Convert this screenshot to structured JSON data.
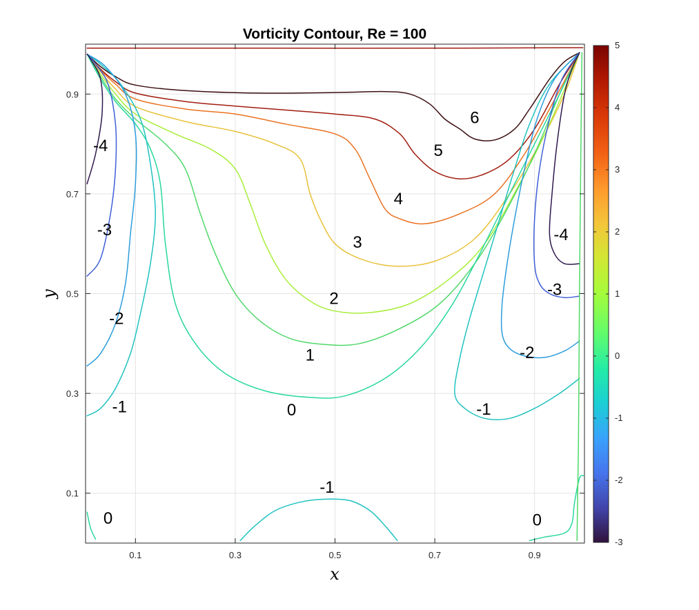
{
  "chart_data": {
    "type": "contour",
    "title": "Vorticity Contour, Re = 100",
    "xlabel": "x",
    "ylabel": "y",
    "xlim": [
      0,
      1
    ],
    "ylim": [
      0,
      1
    ],
    "grid": true,
    "xticks": [
      "0.1",
      "0.3",
      "0.5",
      "0.7",
      "0.9"
    ],
    "yticks": [
      "0.1",
      "0.3",
      "0.5",
      "0.7",
      "0.9"
    ],
    "xtick_values": [
      0.1,
      0.3,
      0.5,
      0.7,
      0.9
    ],
    "ytick_values": [
      0.1,
      0.3,
      0.5,
      0.7,
      0.9
    ],
    "colorbar": {
      "min": -3,
      "max": 5,
      "ticks": [
        "5",
        "4",
        "3",
        "2",
        "1",
        "0",
        "-1",
        "-2",
        "-3"
      ],
      "tick_values": [
        5,
        4,
        3,
        2,
        1,
        0,
        -1,
        -2,
        -3
      ]
    },
    "levels": [
      {
        "level": 6,
        "color": "#3a0e10",
        "points": [
          [
            0.003,
            0.98
          ],
          [
            0.03,
            0.955
          ],
          [
            0.06,
            0.935
          ],
          [
            0.1,
            0.918
          ],
          [
            0.2,
            0.907
          ],
          [
            0.35,
            0.902
          ],
          [
            0.5,
            0.903
          ],
          [
            0.6,
            0.905
          ],
          [
            0.65,
            0.9
          ],
          [
            0.69,
            0.88
          ],
          [
            0.72,
            0.85
          ],
          [
            0.75,
            0.83
          ],
          [
            0.78,
            0.81
          ],
          [
            0.82,
            0.808
          ],
          [
            0.86,
            0.83
          ],
          [
            0.89,
            0.87
          ],
          [
            0.93,
            0.93
          ],
          [
            0.96,
            0.965
          ],
          [
            0.99,
            0.983
          ]
        ]
      },
      {
        "level": 5,
        "color": "#a01c10",
        "points": [
          [
            0.003,
            0.98
          ],
          [
            0.03,
            0.95
          ],
          [
            0.06,
            0.925
          ],
          [
            0.1,
            0.902
          ],
          [
            0.2,
            0.885
          ],
          [
            0.3,
            0.876
          ],
          [
            0.4,
            0.868
          ],
          [
            0.5,
            0.86
          ],
          [
            0.58,
            0.85
          ],
          [
            0.63,
            0.82
          ],
          [
            0.66,
            0.78
          ],
          [
            0.7,
            0.745
          ],
          [
            0.75,
            0.73
          ],
          [
            0.8,
            0.74
          ],
          [
            0.85,
            0.77
          ],
          [
            0.9,
            0.83
          ],
          [
            0.95,
            0.92
          ],
          [
            0.99,
            0.983
          ]
        ]
      },
      {
        "level": 4,
        "color": "#ea7221",
        "points": [
          [
            0.003,
            0.98
          ],
          [
            0.03,
            0.948
          ],
          [
            0.06,
            0.92
          ],
          [
            0.1,
            0.89
          ],
          [
            0.2,
            0.87
          ],
          [
            0.3,
            0.86
          ],
          [
            0.4,
            0.84
          ],
          [
            0.5,
            0.82
          ],
          [
            0.54,
            0.79
          ],
          [
            0.57,
            0.73
          ],
          [
            0.6,
            0.67
          ],
          [
            0.63,
            0.65
          ],
          [
            0.68,
            0.64
          ],
          [
            0.75,
            0.66
          ],
          [
            0.82,
            0.7
          ],
          [
            0.88,
            0.78
          ],
          [
            0.93,
            0.87
          ],
          [
            0.99,
            0.983
          ]
        ]
      },
      {
        "level": 3,
        "color": "#e8c13a",
        "points": [
          [
            0.003,
            0.98
          ],
          [
            0.03,
            0.945
          ],
          [
            0.06,
            0.91
          ],
          [
            0.1,
            0.875
          ],
          [
            0.2,
            0.845
          ],
          [
            0.3,
            0.825
          ],
          [
            0.38,
            0.8
          ],
          [
            0.43,
            0.77
          ],
          [
            0.45,
            0.7
          ],
          [
            0.47,
            0.65
          ],
          [
            0.5,
            0.6
          ],
          [
            0.55,
            0.57
          ],
          [
            0.62,
            0.555
          ],
          [
            0.7,
            0.565
          ],
          [
            0.78,
            0.61
          ],
          [
            0.85,
            0.7
          ],
          [
            0.91,
            0.8
          ],
          [
            0.96,
            0.9
          ],
          [
            0.99,
            0.983
          ]
        ]
      },
      {
        "level": 2,
        "color": "#a8ee3a",
        "points": [
          [
            0.003,
            0.98
          ],
          [
            0.03,
            0.94
          ],
          [
            0.06,
            0.9
          ],
          [
            0.1,
            0.86
          ],
          [
            0.18,
            0.82
          ],
          [
            0.25,
            0.79
          ],
          [
            0.3,
            0.75
          ],
          [
            0.33,
            0.68
          ],
          [
            0.36,
            0.6
          ],
          [
            0.4,
            0.53
          ],
          [
            0.45,
            0.485
          ],
          [
            0.5,
            0.465
          ],
          [
            0.57,
            0.462
          ],
          [
            0.65,
            0.48
          ],
          [
            0.73,
            0.53
          ],
          [
            0.8,
            0.6
          ],
          [
            0.87,
            0.72
          ],
          [
            0.93,
            0.84
          ],
          [
            0.99,
            0.983
          ]
        ]
      },
      {
        "level": 1,
        "color": "#4fd86a",
        "points": [
          [
            0.003,
            0.98
          ],
          [
            0.03,
            0.935
          ],
          [
            0.06,
            0.89
          ],
          [
            0.1,
            0.85
          ],
          [
            0.16,
            0.8
          ],
          [
            0.2,
            0.75
          ],
          [
            0.23,
            0.66
          ],
          [
            0.26,
            0.58
          ],
          [
            0.3,
            0.5
          ],
          [
            0.35,
            0.445
          ],
          [
            0.41,
            0.41
          ],
          [
            0.48,
            0.398
          ],
          [
            0.55,
            0.4
          ],
          [
            0.63,
            0.43
          ],
          [
            0.71,
            0.48
          ],
          [
            0.78,
            0.56
          ],
          [
            0.84,
            0.66
          ],
          [
            0.9,
            0.78
          ],
          [
            0.95,
            0.9
          ],
          [
            0.99,
            0.983
          ]
        ]
      },
      {
        "level": 0,
        "color": "#28d7a0",
        "points": [
          [
            0.003,
            0.98
          ],
          [
            0.03,
            0.93
          ],
          [
            0.06,
            0.885
          ],
          [
            0.1,
            0.84
          ],
          [
            0.13,
            0.79
          ],
          [
            0.15,
            0.72
          ],
          [
            0.16,
            0.6
          ],
          [
            0.18,
            0.48
          ],
          [
            0.22,
            0.4
          ],
          [
            0.28,
            0.34
          ],
          [
            0.36,
            0.305
          ],
          [
            0.45,
            0.292
          ],
          [
            0.52,
            0.295
          ],
          [
            0.6,
            0.33
          ],
          [
            0.67,
            0.39
          ],
          [
            0.73,
            0.47
          ],
          [
            0.78,
            0.56
          ],
          [
            0.84,
            0.68
          ],
          [
            0.9,
            0.8
          ],
          [
            0.95,
            0.9
          ],
          [
            0.99,
            0.983
          ]
        ]
      },
      {
        "level": -1,
        "color": "#20c2c0",
        "points": [
          [
            0.003,
            0.255
          ],
          [
            0.03,
            0.27
          ],
          [
            0.06,
            0.31
          ],
          [
            0.09,
            0.38
          ],
          [
            0.11,
            0.46
          ],
          [
            0.13,
            0.56
          ],
          [
            0.14,
            0.66
          ],
          [
            0.13,
            0.76
          ],
          [
            0.11,
            0.85
          ],
          [
            0.07,
            0.92
          ],
          [
            0.03,
            0.96
          ],
          [
            0.003,
            0.98
          ]
        ]
      },
      {
        "level": -2,
        "color": "#2a9cdc",
        "points": [
          [
            0.003,
            0.355
          ],
          [
            0.03,
            0.38
          ],
          [
            0.06,
            0.44
          ],
          [
            0.08,
            0.52
          ],
          [
            0.09,
            0.62
          ],
          [
            0.1,
            0.72
          ],
          [
            0.1,
            0.82
          ],
          [
            0.08,
            0.9
          ],
          [
            0.04,
            0.955
          ],
          [
            0.003,
            0.98
          ]
        ]
      },
      {
        "level": -3,
        "color": "#3f5fd6",
        "points": [
          [
            0.003,
            0.535
          ],
          [
            0.03,
            0.57
          ],
          [
            0.05,
            0.66
          ],
          [
            0.06,
            0.75
          ],
          [
            0.06,
            0.84
          ],
          [
            0.045,
            0.92
          ],
          [
            0.02,
            0.96
          ],
          [
            0.003,
            0.98
          ]
        ]
      },
      {
        "level": -4,
        "color": "#30174e",
        "points": [
          [
            0.003,
            0.72
          ],
          [
            0.02,
            0.78
          ],
          [
            0.033,
            0.86
          ],
          [
            0.03,
            0.93
          ],
          [
            0.01,
            0.97
          ],
          [
            0.003,
            0.98
          ]
        ]
      },
      {
        "level": -1,
        "color": "#20c2c0",
        "points": [
          [
            0.99,
            0.33
          ],
          [
            0.95,
            0.3
          ],
          [
            0.9,
            0.27
          ],
          [
            0.85,
            0.25
          ],
          [
            0.8,
            0.25
          ],
          [
            0.76,
            0.27
          ],
          [
            0.74,
            0.3
          ],
          [
            0.75,
            0.37
          ],
          [
            0.77,
            0.45
          ],
          [
            0.8,
            0.55
          ],
          [
            0.83,
            0.65
          ],
          [
            0.86,
            0.75
          ],
          [
            0.89,
            0.84
          ],
          [
            0.93,
            0.92
          ],
          [
            0.99,
            0.983
          ]
        ]
      },
      {
        "level": -2,
        "color": "#2a9cdc",
        "points": [
          [
            0.99,
            0.405
          ],
          [
            0.96,
            0.385
          ],
          [
            0.92,
            0.372
          ],
          [
            0.88,
            0.375
          ],
          [
            0.85,
            0.39
          ],
          [
            0.835,
            0.42
          ],
          [
            0.835,
            0.48
          ],
          [
            0.845,
            0.56
          ],
          [
            0.86,
            0.65
          ],
          [
            0.88,
            0.75
          ],
          [
            0.905,
            0.85
          ],
          [
            0.94,
            0.93
          ],
          [
            0.99,
            0.983
          ]
        ]
      },
      {
        "level": -3,
        "color": "#3f5fd6",
        "points": [
          [
            0.99,
            0.495
          ],
          [
            0.96,
            0.492
          ],
          [
            0.93,
            0.5
          ],
          [
            0.91,
            0.52
          ],
          [
            0.9,
            0.56
          ],
          [
            0.9,
            0.65
          ],
          [
            0.91,
            0.75
          ],
          [
            0.93,
            0.85
          ],
          [
            0.955,
            0.93
          ],
          [
            0.99,
            0.983
          ]
        ]
      },
      {
        "level": -4,
        "color": "#30174e",
        "points": [
          [
            0.99,
            0.56
          ],
          [
            0.96,
            0.56
          ],
          [
            0.94,
            0.58
          ],
          [
            0.93,
            0.62
          ],
          [
            0.935,
            0.7
          ],
          [
            0.945,
            0.8
          ],
          [
            0.96,
            0.9
          ],
          [
            0.975,
            0.95
          ],
          [
            0.99,
            0.983
          ]
        ]
      },
      {
        "level": 0,
        "color": "#28d7a0",
        "points": [
          [
            0.89,
            0.005
          ],
          [
            0.92,
            0.012
          ],
          [
            0.96,
            0.02
          ],
          [
            0.975,
            0.04
          ],
          [
            0.98,
            0.08
          ],
          [
            0.99,
            0.13
          ],
          [
            0.998,
            0.135
          ]
        ]
      },
      {
        "level": 0,
        "color": "#28d7a0",
        "points": [
          [
            0.003,
            0.062
          ],
          [
            0.01,
            0.03
          ],
          [
            0.02,
            0.008
          ]
        ]
      },
      {
        "level": -1,
        "color": "#20c2c0",
        "points": [
          [
            0.31,
            0.005
          ],
          [
            0.34,
            0.035
          ],
          [
            0.38,
            0.065
          ],
          [
            0.43,
            0.082
          ],
          [
            0.48,
            0.088
          ],
          [
            0.53,
            0.085
          ],
          [
            0.57,
            0.065
          ],
          [
            0.6,
            0.035
          ],
          [
            0.625,
            0.005
          ]
        ]
      },
      {
        "level": 1,
        "color": "#4fd86a",
        "points": [
          [
            0.985,
            0.005
          ],
          [
            0.988,
            0.2
          ],
          [
            0.99,
            0.5
          ],
          [
            0.993,
            0.8
          ],
          [
            0.995,
            0.983
          ]
        ]
      },
      {
        "level": 5,
        "color": "#a01c10",
        "points": [
          [
            0.003,
            0.992
          ],
          [
            0.3,
            0.992
          ],
          [
            0.7,
            0.992
          ],
          [
            0.997,
            0.993
          ]
        ]
      }
    ],
    "labels": [
      {
        "text": "6",
        "x": 0.78,
        "y": 0.853
      },
      {
        "text": "5",
        "x": 0.707,
        "y": 0.787
      },
      {
        "text": "4",
        "x": 0.627,
        "y": 0.69
      },
      {
        "text": "3",
        "x": 0.545,
        "y": 0.603
      },
      {
        "text": "2",
        "x": 0.498,
        "y": 0.49
      },
      {
        "text": "1",
        "x": 0.45,
        "y": 0.377
      },
      {
        "text": "0",
        "x": 0.413,
        "y": 0.267
      },
      {
        "text": "-1",
        "x": 0.068,
        "y": 0.273
      },
      {
        "text": "-2",
        "x": 0.062,
        "y": 0.45
      },
      {
        "text": "-3",
        "x": 0.038,
        "y": 0.628
      },
      {
        "text": "-4",
        "x": 0.03,
        "y": 0.797
      },
      {
        "text": "-1",
        "x": 0.798,
        "y": 0.268
      },
      {
        "text": "-2",
        "x": 0.885,
        "y": 0.382
      },
      {
        "text": "-3",
        "x": 0.94,
        "y": 0.508
      },
      {
        "text": "-4",
        "x": 0.953,
        "y": 0.618
      },
      {
        "text": "-1",
        "x": 0.484,
        "y": 0.112
      },
      {
        "text": "0",
        "x": 0.045,
        "y": 0.05
      },
      {
        "text": "0",
        "x": 0.905,
        "y": 0.046
      }
    ]
  }
}
